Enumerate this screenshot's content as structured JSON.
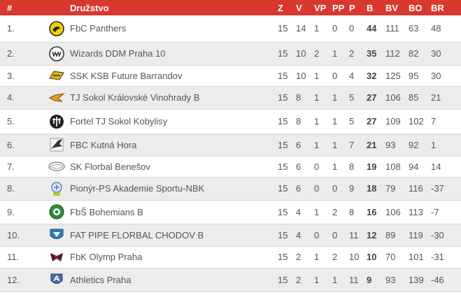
{
  "table": {
    "headers": {
      "rank": "#",
      "team": "Družstvo",
      "z": "Z",
      "v": "V",
      "vp": "VP",
      "pp": "PP",
      "p": "P",
      "b": "B",
      "bv": "BV",
      "bo": "BO",
      "br": "BR"
    },
    "rows": [
      {
        "rank": "1.",
        "logo_icon": "panthers-logo-icon",
        "team": "FbC Panthers",
        "z": "15",
        "v": "14",
        "vp": "1",
        "pp": "0",
        "p": "0",
        "b": "44",
        "bv": "111",
        "bo": "63",
        "br": "48"
      },
      {
        "rank": "2.",
        "logo_icon": "wizards-logo-icon",
        "team": "Wizards DDM Praha 10",
        "z": "15",
        "v": "10",
        "vp": "2",
        "pp": "1",
        "p": "2",
        "b": "35",
        "bv": "112",
        "bo": "82",
        "br": "30"
      },
      {
        "rank": "3.",
        "logo_icon": "ksb-logo-icon",
        "team": "SSK KSB Future Barrandov",
        "z": "15",
        "v": "10",
        "vp": "1",
        "pp": "0",
        "p": "4",
        "b": "32",
        "bv": "125",
        "bo": "95",
        "br": "30"
      },
      {
        "rank": "4.",
        "logo_icon": "sokol-kv-logo-icon",
        "team": "TJ Sokol Královské Vinohrady B",
        "z": "15",
        "v": "8",
        "vp": "1",
        "pp": "1",
        "p": "5",
        "b": "27",
        "bv": "106",
        "bo": "85",
        "br": "21"
      },
      {
        "rank": "5.",
        "logo_icon": "fortel-logo-icon",
        "team": "Fortel TJ Sokol Kobylisy",
        "z": "15",
        "v": "8",
        "vp": "1",
        "pp": "1",
        "p": "5",
        "b": "27",
        "bv": "109",
        "bo": "102",
        "br": "7"
      },
      {
        "rank": "6.",
        "logo_icon": "kutna-hora-logo-icon",
        "team": "FBC Kutná Hora",
        "z": "15",
        "v": "6",
        "vp": "1",
        "pp": "1",
        "p": "7",
        "b": "21",
        "bv": "93",
        "bo": "92",
        "br": "1"
      },
      {
        "rank": "7.",
        "logo_icon": "benesov-logo-icon",
        "team": "SK Florbal Benešov",
        "z": "15",
        "v": "6",
        "vp": "0",
        "pp": "1",
        "p": "8",
        "b": "19",
        "bv": "108",
        "bo": "94",
        "br": "14"
      },
      {
        "rank": "8.",
        "logo_icon": "pionyr-logo-icon",
        "team": "Pionýr-PS Akademie Sportu-NBK",
        "z": "15",
        "v": "6",
        "vp": "0",
        "pp": "0",
        "p": "9",
        "b": "18",
        "bv": "79",
        "bo": "116",
        "br": "-37"
      },
      {
        "rank": "9.",
        "logo_icon": "bohemians-logo-icon",
        "team": "FbŠ Bohemians B",
        "z": "15",
        "v": "4",
        "vp": "1",
        "pp": "2",
        "p": "8",
        "b": "16",
        "bv": "106",
        "bo": "113",
        "br": "-7"
      },
      {
        "rank": "10.",
        "logo_icon": "fat-pipe-logo-icon",
        "team": "FAT PIPE FLORBAL CHODOV B",
        "z": "15",
        "v": "4",
        "vp": "0",
        "pp": "0",
        "p": "11",
        "b": "12",
        "bv": "89",
        "bo": "119",
        "br": "-30"
      },
      {
        "rank": "11.",
        "logo_icon": "olymp-logo-icon",
        "team": "FbK Olymp Praha",
        "z": "15",
        "v": "2",
        "vp": "1",
        "pp": "2",
        "p": "10",
        "b": "10",
        "bv": "70",
        "bo": "101",
        "br": "-31"
      },
      {
        "rank": "12.",
        "logo_icon": "athletics-logo-icon",
        "team": "Athletics Praha",
        "z": "15",
        "v": "2",
        "vp": "1",
        "pp": "1",
        "p": "11",
        "b": "9",
        "bv": "93",
        "bo": "139",
        "br": "-46"
      }
    ]
  },
  "colors": {
    "header_bg": "#d8382e",
    "header_text": "#ffffff",
    "row_alt": "#ececec",
    "row_border": "#d9d9d9"
  }
}
